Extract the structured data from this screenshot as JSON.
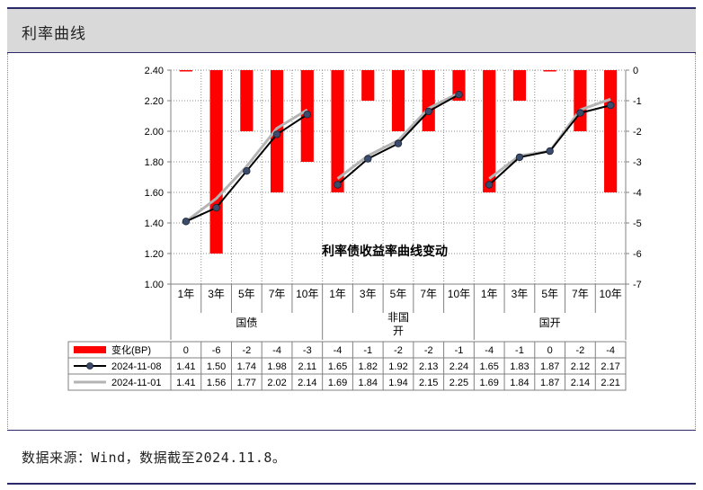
{
  "header": {
    "title": "利率曲线"
  },
  "footer": {
    "source": "数据来源：Wind，数据截至2024.11.8。"
  },
  "chart_data": {
    "type": "bar+line",
    "title": "利率债收益率曲线变动",
    "groups": [
      "国债",
      "非国开",
      "国开"
    ],
    "categories": [
      "1年",
      "3年",
      "5年",
      "7年",
      "10年",
      "1年",
      "3年",
      "5年",
      "7年",
      "10年",
      "1年",
      "3年",
      "5年",
      "7年",
      "10年"
    ],
    "group_of_category": [
      0,
      0,
      0,
      0,
      0,
      1,
      1,
      1,
      1,
      1,
      2,
      2,
      2,
      2,
      2
    ],
    "left_axis": {
      "ylim": [
        1.0,
        2.4
      ],
      "ticks": [
        "1.00",
        "1.20",
        "1.40",
        "1.60",
        "1.80",
        "2.00",
        "2.20",
        "2.40"
      ]
    },
    "right_axis": {
      "ylim": [
        -7,
        0
      ],
      "ticks": [
        "-7",
        "-6",
        "-5",
        "-4",
        "-3",
        "-2",
        "-1",
        "0"
      ]
    },
    "grid": true,
    "series": [
      {
        "name": "变化(BP)",
        "kind": "bar",
        "axis": "right",
        "color": "#ff0000",
        "values": [
          0,
          -6,
          -2,
          -4,
          -3,
          -4,
          -1,
          -2,
          -2,
          -1,
          -4,
          -1,
          0,
          -2,
          -4
        ]
      },
      {
        "name": "2024-11-08",
        "kind": "line",
        "axis": "left",
        "color": "#000000",
        "marker_color": "#3b4b6b",
        "values": [
          1.41,
          1.5,
          1.74,
          1.98,
          2.11,
          1.65,
          1.82,
          1.92,
          2.13,
          2.24,
          1.65,
          1.83,
          1.87,
          2.12,
          2.17
        ]
      },
      {
        "name": "2024-11-01",
        "kind": "line",
        "axis": "left",
        "color": "#b4b4b4",
        "values": [
          1.41,
          1.56,
          1.77,
          2.02,
          2.14,
          1.69,
          1.84,
          1.94,
          2.15,
          2.25,
          1.69,
          1.84,
          1.87,
          2.14,
          2.21
        ]
      }
    ],
    "table_cells": {
      "bp": [
        "0",
        "-6",
        "-2",
        "-4",
        "-3",
        "-4",
        "-1",
        "-2",
        "-2",
        "-1",
        "-4",
        "-1",
        "0",
        "-2",
        "-4"
      ],
      "d1108": [
        "1.41",
        "1.50",
        "1.74",
        "1.98",
        "2.11",
        "1.65",
        "1.82",
        "1.92",
        "2.13",
        "2.24",
        "1.65",
        "1.83",
        "1.87",
        "2.12",
        "2.17"
      ],
      "d1101": [
        "1.41",
        "1.56",
        "1.77",
        "2.02",
        "2.14",
        "1.69",
        "1.84",
        "1.94",
        "2.15",
        "2.25",
        "1.69",
        "1.84",
        "1.87",
        "2.14",
        "2.21"
      ]
    }
  }
}
